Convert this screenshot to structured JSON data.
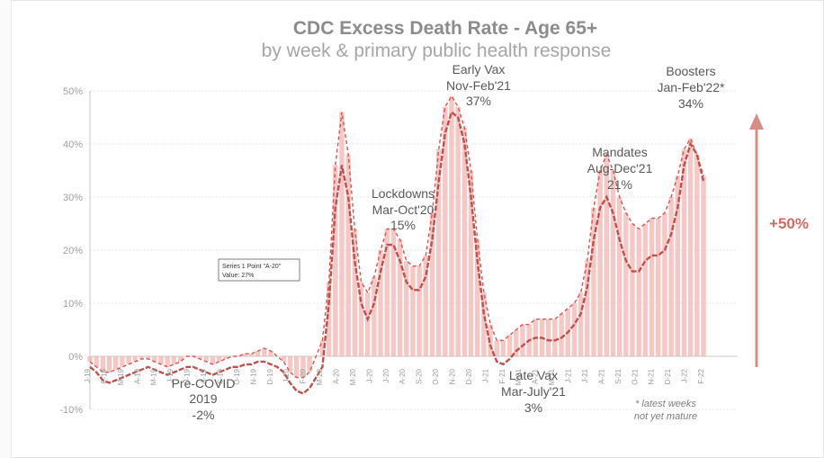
{
  "chart_data": {
    "type": "line",
    "title": "CDC Excess Death Rate - Age 65+",
    "subtitle": "by week & primary public health response",
    "ylim": [
      -10,
      50
    ],
    "yticks": [
      "-10%",
      "0%",
      "10%",
      "20%",
      "30%",
      "40%",
      "50%"
    ],
    "ytick_values": [
      -10,
      0,
      10,
      20,
      30,
      40,
      50
    ],
    "xtick_labels": [
      "J-19",
      "F-19",
      "M-19",
      "A-19",
      "M-19",
      "J-19",
      "J-19",
      "A-19",
      "S-19",
      "O-19",
      "N-19",
      "D-19",
      "J-20",
      "F-20",
      "M-20",
      "A-20",
      "M-20",
      "J-20",
      "J-20",
      "A-20",
      "S-20",
      "O-20",
      "N-20",
      "D-20",
      "J-21",
      "F-21",
      "M-21",
      "A-21",
      "M-21",
      "J-21",
      "J-21",
      "A-21",
      "S-21",
      "O-21",
      "N-21",
      "D-21",
      "J-22",
      "F-22"
    ],
    "grid": true,
    "series": [
      {
        "values": [
          -2,
          -3,
          -4.5,
          -5,
          -4.5,
          -4,
          -3.5,
          -3,
          -2.5,
          -2,
          -2.5,
          -3,
          -3.5,
          -3,
          -2.5,
          -2,
          -2,
          -2.5,
          -3,
          -3.5,
          -3,
          -2.5,
          -2,
          -2,
          -1.5,
          -1.5,
          -1,
          -1,
          -1.5,
          -2,
          -3,
          -5,
          -6.5,
          -7,
          -6,
          -4,
          -2,
          10,
          28,
          36,
          30,
          18,
          10,
          7,
          10,
          16,
          21,
          21,
          18,
          14,
          12.5,
          12.5,
          15,
          22,
          33,
          42,
          46,
          45,
          40,
          30,
          18,
          8,
          2,
          -1,
          -1.5,
          -0.5,
          1,
          2,
          3,
          3.5,
          3.5,
          3,
          3,
          3.5,
          4.5,
          6,
          8,
          13,
          22,
          28,
          30,
          27,
          22,
          18,
          16,
          16,
          18,
          19,
          19,
          20,
          23,
          28,
          36,
          40,
          38,
          33
        ]
      },
      {
        "values": [
          -1,
          -2,
          -3,
          -3,
          -2.5,
          -2,
          -1.5,
          -1,
          -0.5,
          -0.5,
          -1,
          -1.5,
          -2,
          -1.5,
          -1,
          0,
          0,
          -0.5,
          -1,
          -1.5,
          -1,
          -0.5,
          0,
          0,
          0.5,
          0.5,
          1,
          1.5,
          1,
          0,
          -1,
          -3,
          -4,
          -4,
          -3,
          0,
          3,
          14,
          36,
          46,
          38,
          24,
          14,
          12,
          15,
          20,
          24,
          24,
          22,
          18,
          17,
          17,
          19,
          27,
          39,
          47,
          49,
          47,
          43,
          35,
          22,
          12,
          6,
          3,
          3,
          4,
          5,
          6,
          6,
          7,
          7,
          7,
          7,
          8,
          9,
          10,
          12,
          18,
          28,
          35,
          38,
          35,
          30,
          27,
          25,
          24,
          25,
          26,
          26,
          27,
          30,
          34,
          39,
          41,
          38,
          34
        ]
      }
    ],
    "annotations": [
      {
        "line1": "Pre-COVID",
        "line2": "2019",
        "value": "-2%"
      },
      {
        "line1": "Lockdowns",
        "line2": "Mar-Oct'20",
        "value": "15%"
      },
      {
        "line1": "Early Vax",
        "line2": "Nov-Feb'21",
        "value": "37%"
      },
      {
        "line1": "Late Vax",
        "line2": "Mar-July'21",
        "value": "3%"
      },
      {
        "line1": "Mandates",
        "line2": "Aug-Dec'21",
        "value": "21%"
      },
      {
        "line1": "Boosters",
        "line2": "Jan-Feb'22*",
        "value": "34%"
      }
    ],
    "side_label": "+50%",
    "footnote_line1": "* latest weeks",
    "footnote_line2": "not yet mature",
    "tooltip_line1": "Series 1 Point \"A-20\"",
    "tooltip_line2": "Value: 27%",
    "colors": {
      "bars": "#f2b6b2",
      "line": "#c0504d",
      "dashed": "#d9534f",
      "arrow": "#d98b88",
      "title": "#8c8c8c",
      "subtitle": "#a6a6a6",
      "annotation": "#595959"
    }
  }
}
